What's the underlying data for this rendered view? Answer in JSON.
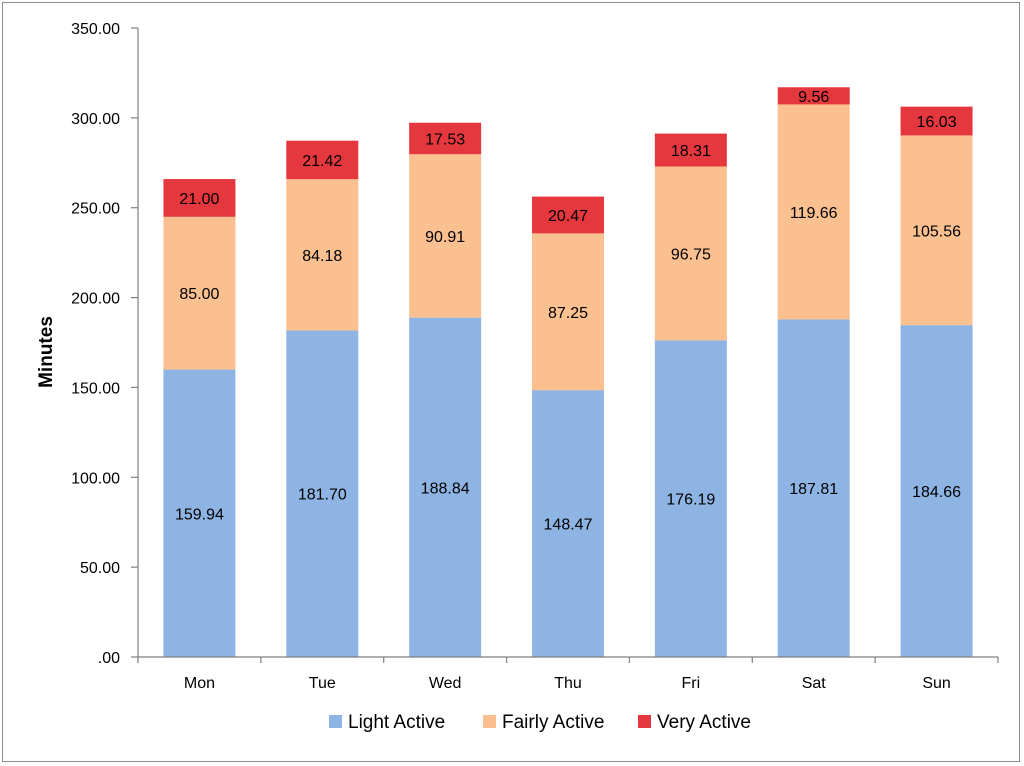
{
  "chart_data": {
    "type": "bar",
    "stacked": true,
    "title": "",
    "xlabel": "",
    "ylabel": "Minutes",
    "ylim": [
      0,
      350
    ],
    "ytick_step": 50,
    "ytick_labels": [
      ".00",
      "50.00",
      "100.00",
      "150.00",
      "200.00",
      "250.00",
      "300.00",
      "350.00"
    ],
    "grid": false,
    "legend_position": "bottom",
    "categories": [
      "Mon",
      "Tue",
      "Wed",
      "Thu",
      "Fri",
      "Sat",
      "Sun"
    ],
    "series": [
      {
        "name": "Light Active",
        "color": "#8eb4e3",
        "values": [
          159.94,
          181.7,
          188.84,
          148.47,
          176.19,
          187.81,
          184.66
        ],
        "labels": [
          "159.94",
          "181.70",
          "188.84",
          "148.47",
          "176.19",
          "187.81",
          "184.66"
        ]
      },
      {
        "name": "Fairly Active",
        "color": "#fac090",
        "values": [
          85.0,
          84.18,
          90.91,
          87.25,
          96.75,
          119.66,
          105.56
        ],
        "labels": [
          "85.00",
          "84.18",
          "90.91",
          "87.25",
          "96.75",
          "119.66",
          "105.56"
        ]
      },
      {
        "name": "Very Active",
        "color": "#e5383e",
        "values": [
          21.0,
          21.42,
          17.53,
          20.47,
          18.31,
          9.56,
          16.03
        ],
        "labels": [
          "21.00",
          "21.42",
          "17.53",
          "20.47",
          "18.31",
          "9.56",
          "16.03"
        ]
      }
    ]
  }
}
